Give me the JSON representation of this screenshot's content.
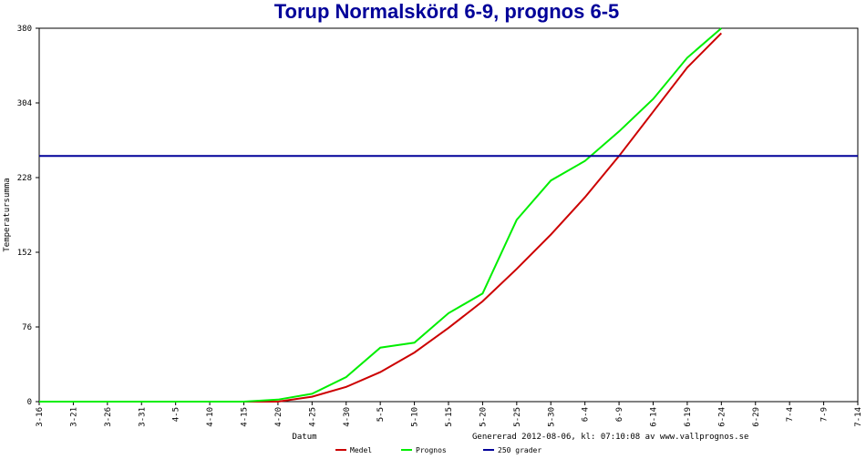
{
  "chart_data": {
    "type": "line",
    "title": "Torup Normalskörd 6-9, prognos 6-5",
    "x_label": "Datum",
    "y_label": "Temperatursumma",
    "annotation": "Genererad 2012-08-06, kl: 07:10:08 av www.vallprognos.se",
    "categories": [
      "3-16",
      "3-21",
      "3-26",
      "3-31",
      "4-5",
      "4-10",
      "4-15",
      "4-20",
      "4-25",
      "4-30",
      "5-5",
      "5-10",
      "5-15",
      "5-20",
      "5-25",
      "5-30",
      "6-4",
      "6-9",
      "6-14",
      "6-19",
      "6-24",
      "6-29",
      "7-4",
      "7-9",
      "7-14"
    ],
    "series": [
      {
        "name": "Medel",
        "color": "#cc0000",
        "values": [
          0,
          0,
          0,
          0,
          0,
          0,
          0,
          0,
          5,
          15,
          30,
          50,
          75,
          102,
          135,
          170,
          208,
          250,
          295,
          340,
          375,
          null,
          null,
          null,
          null
        ]
      },
      {
        "name": "Prognos",
        "color": "#00ee00",
        "values": [
          0,
          0,
          0,
          0,
          0,
          0,
          0,
          2,
          8,
          25,
          55,
          60,
          90,
          110,
          185,
          225,
          245,
          275,
          308,
          350,
          380,
          null,
          null,
          null,
          null
        ]
      },
      {
        "name": "250 grader",
        "color": "#000099",
        "values": [
          250,
          250,
          250,
          250,
          250,
          250,
          250,
          250,
          250,
          250,
          250,
          250,
          250,
          250,
          250,
          250,
          250,
          250,
          250,
          250,
          250,
          250,
          250,
          250,
          250
        ]
      }
    ],
    "ylim": [
      0,
      380
    ],
    "yticks": [
      0,
      76,
      152,
      228,
      304,
      380
    ],
    "grid": false
  }
}
